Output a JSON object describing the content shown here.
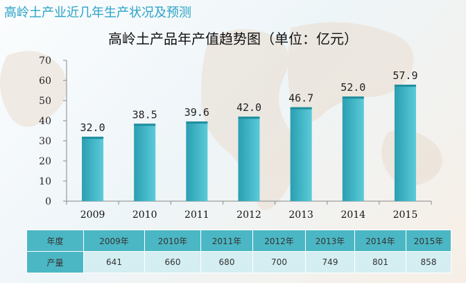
{
  "header": {
    "title": "高岭土产业近几年生产状况及预测"
  },
  "chart_data": {
    "type": "bar",
    "title": "高岭土产品年产值趋势图（单位：亿元）",
    "categories": [
      "2009",
      "2010",
      "2011",
      "2012",
      "2013",
      "2014",
      "2015"
    ],
    "values": [
      32.0,
      38.5,
      39.6,
      42.0,
      46.7,
      52.0,
      57.9
    ],
    "value_labels": [
      "32.0",
      "38.5",
      "39.6",
      "42.0",
      "46.7",
      "52.0",
      "57.9"
    ],
    "ylim": [
      0,
      70
    ],
    "yticks": [
      "0",
      "10",
      "20",
      "30",
      "40",
      "50",
      "60",
      "70"
    ],
    "bar_color": "#3fb3c3",
    "grid": false
  },
  "table": {
    "row_labels": [
      "年度",
      "产量"
    ],
    "years": [
      "2009年",
      "2010年",
      "2011年",
      "2012年",
      "2013年",
      "2014年",
      "2015年"
    ],
    "output": [
      "641",
      "660",
      "680",
      "700",
      "749",
      "801",
      "858"
    ]
  },
  "colors": {
    "header_text": "#2aa3c6",
    "table_header": "#4cb7c4",
    "table_body": "#d4eef2"
  }
}
